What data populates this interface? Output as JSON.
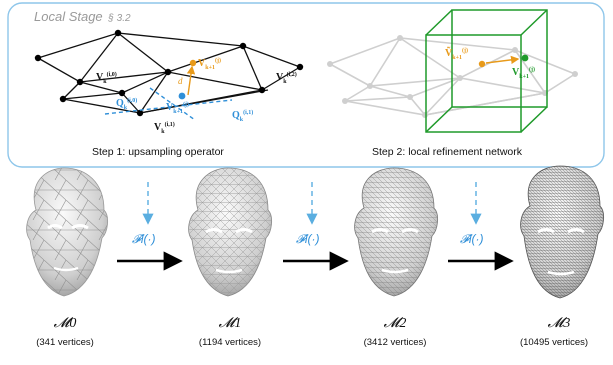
{
  "local_stage": {
    "title": "Local Stage",
    "section_ref": "§ 3.2",
    "step1_label": "Step 1: upsampling operator",
    "step2_label": "Step 2: local refinement network"
  },
  "operator_label": "𝓕l(·)",
  "vertex_labels": {
    "v0": "V",
    "d": "d",
    "q": "Q"
  },
  "meshes": [
    {
      "name": "𝓜0",
      "vertices": "(341 vertices)"
    },
    {
      "name": "𝓜1",
      "vertices": "(1194 vertices)"
    },
    {
      "name": "𝓜2",
      "vertices": "(3412 vertices)"
    },
    {
      "name": "𝓜3",
      "vertices": "(10495 vertices)"
    }
  ],
  "colors": {
    "frame": "#8ec6ea",
    "dashed_arrow": "#5aaee0",
    "blue": "#2f8fd8",
    "orange": "#e89a1a",
    "green": "#1f9a2a",
    "mesh_gray": "#d8d8d8"
  }
}
